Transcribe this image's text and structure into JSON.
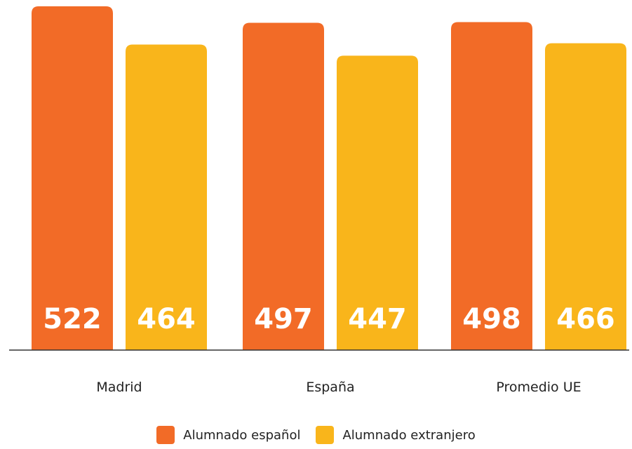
{
  "chart_data": {
    "type": "bar",
    "categories": [
      "Madrid",
      "España",
      "Promedio UE"
    ],
    "series": [
      {
        "name": "Alumnado español",
        "values": [
          522,
          497,
          498
        ],
        "color": "#F26B27"
      },
      {
        "name": "Alumnado extranjero",
        "values": [
          464,
          447,
          466
        ],
        "color": "#F9B51B"
      }
    ],
    "title": "",
    "xlabel": "",
    "ylabel": "",
    "ylim": [
      0,
      522
    ],
    "grid": false,
    "legend": "bottom-center",
    "data_labels": true
  }
}
